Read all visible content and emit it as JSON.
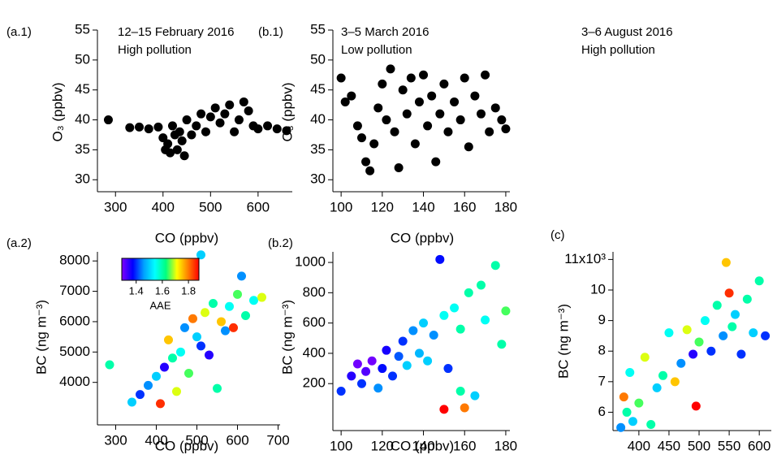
{
  "chart_data": [
    {
      "type": "scatter",
      "panel_label": "(a.1)",
      "annotations": [
        "12–15 February 2016",
        "High pollution"
      ],
      "xlabel": "CO (ppbv)",
      "ylabel": "O₃ (ppbv)",
      "xlim": [
        262,
        672
      ],
      "ylim": [
        28,
        55
      ],
      "xticks": [
        300,
        400,
        500,
        600
      ],
      "yticks": [
        30,
        35,
        40,
        45,
        50,
        55
      ],
      "color": "#000000",
      "x": [
        285,
        330,
        350,
        370,
        390,
        400,
        405,
        410,
        415,
        420,
        425,
        430,
        435,
        440,
        445,
        450,
        460,
        470,
        480,
        490,
        500,
        510,
        520,
        530,
        540,
        550,
        560,
        570,
        580,
        590,
        600,
        620,
        640,
        660
      ],
      "values": [
        40,
        38.7,
        38.8,
        38.5,
        38.8,
        37,
        35,
        36,
        34.5,
        39,
        37.5,
        35,
        38,
        36.5,
        34,
        40,
        37.5,
        39,
        41,
        38,
        40.5,
        42,
        39.5,
        41,
        42.5,
        38,
        40,
        43,
        41.5,
        39,
        38.5,
        39,
        38.5,
        38.2
      ]
    },
    {
      "type": "scatter",
      "panel_label": "(b.1)",
      "annotations": [
        "3–5 March 2016",
        "Low pollution"
      ],
      "xlabel": "CO (ppbv)",
      "ylabel": "O₃ (ppbv)",
      "xlim": [
        96,
        182
      ],
      "ylim": [
        28,
        55
      ],
      "xticks": [
        100,
        120,
        140,
        160,
        180
      ],
      "yticks": [
        30,
        35,
        40,
        45,
        50,
        55
      ],
      "color": "#000000",
      "x": [
        100,
        102,
        105,
        108,
        110,
        112,
        114,
        116,
        118,
        120,
        122,
        124,
        126,
        128,
        130,
        132,
        134,
        136,
        138,
        140,
        142,
        144,
        146,
        148,
        150,
        152,
        155,
        158,
        160,
        162,
        165,
        168,
        170,
        172,
        175,
        178,
        180
      ],
      "values": [
        47,
        43,
        44,
        39,
        37,
        33,
        31.5,
        36,
        42,
        46,
        40,
        48.5,
        38,
        32,
        45,
        41,
        47,
        36,
        43,
        47.5,
        39,
        44,
        33,
        41,
        46,
        38,
        43,
        40,
        47,
        35.5,
        44,
        41,
        47.5,
        38,
        42,
        40,
        38.5
      ]
    },
    {
      "type": "scatter",
      "panel_label": "(a.2)",
      "xlabel": "CO (ppbv)",
      "ylabel": "BC (ng m⁻³)",
      "xlim": [
        255,
        705
      ],
      "ylim": [
        2600,
        8300
      ],
      "xticks": [
        300,
        400,
        500,
        600,
        700
      ],
      "yticks": [
        4000,
        5000,
        6000,
        7000,
        8000
      ],
      "colormap": [
        "#8000ff",
        "#0000ff",
        "#00a0ff",
        "#00ffff",
        "#00ff80",
        "#ffff00",
        "#ff8000",
        "#ff0000"
      ],
      "colorbar": {
        "label": "AAE",
        "lim": [
          1.29,
          1.88
        ],
        "ticks": [
          1.4,
          1.6,
          1.8
        ]
      },
      "x": [
        285,
        340,
        360,
        380,
        400,
        410,
        420,
        430,
        440,
        450,
        460,
        470,
        480,
        490,
        500,
        510,
        520,
        510,
        530,
        540,
        550,
        560,
        570,
        580,
        590,
        600,
        610,
        620,
        640,
        660
      ],
      "values": [
        4580,
        3350,
        3600,
        3900,
        4200,
        3300,
        4500,
        5400,
        4800,
        3700,
        5000,
        5800,
        4300,
        6100,
        5500,
        5200,
        6300,
        8200,
        4900,
        6600,
        3800,
        6000,
        5700,
        6500,
        5800,
        6900,
        7500,
        6200,
        6700,
        6800
      ],
      "color_values": [
        1.6,
        1.5,
        1.4,
        1.45,
        1.5,
        1.85,
        1.35,
        1.75,
        1.6,
        1.7,
        1.55,
        1.45,
        1.65,
        1.8,
        1.5,
        1.4,
        1.7,
        1.5,
        1.35,
        1.6,
        1.6,
        1.75,
        1.45,
        1.55,
        1.85,
        1.65,
        1.45,
        1.6,
        1.55,
        1.7
      ]
    },
    {
      "type": "scatter",
      "panel_label": "(b.2)",
      "xlabel": "CO (ppbv)",
      "ylabel": "BC (ng m⁻³)",
      "xlim": [
        96,
        182
      ],
      "ylim": [
        -110,
        1070
      ],
      "xticks": [
        100,
        120,
        140,
        160,
        180
      ],
      "yticks": [
        200,
        400,
        600,
        800,
        1000
      ],
      "x": [
        100,
        105,
        108,
        110,
        112,
        115,
        118,
        120,
        122,
        125,
        128,
        130,
        132,
        135,
        138,
        140,
        142,
        145,
        148,
        150,
        152,
        155,
        158,
        160,
        162,
        165,
        168,
        170,
        175,
        178,
        180,
        150,
        158
      ],
      "values": [
        150,
        250,
        330,
        200,
        280,
        350,
        170,
        300,
        420,
        250,
        380,
        480,
        320,
        550,
        400,
        600,
        350,
        520,
        1020,
        650,
        300,
        700,
        560,
        40,
        800,
        120,
        850,
        620,
        980,
        460,
        680,
        30,
        150
      ],
      "color_values": [
        1.4,
        1.35,
        1.3,
        1.4,
        1.32,
        1.3,
        1.45,
        1.38,
        1.36,
        1.4,
        1.42,
        1.4,
        1.5,
        1.45,
        1.48,
        1.5,
        1.5,
        1.45,
        1.38,
        1.55,
        1.4,
        1.55,
        1.6,
        1.8,
        1.6,
        1.5,
        1.6,
        1.55,
        1.6,
        1.6,
        1.65,
        1.9,
        1.6
      ]
    },
    {
      "type": "scatter",
      "panel_label": "(c)",
      "annotations": [
        "3–6 August 2016",
        "High pollution"
      ],
      "ylabel": "BC (ng m⁻³)",
      "xlim": [
        357,
        620
      ],
      "ylim": [
        5400,
        11250
      ],
      "xticks": [
        400,
        450,
        500,
        550,
        600
      ],
      "yticks": [
        {
          "value": 6000,
          "label": "6"
        },
        {
          "value": 7000,
          "label": "7"
        },
        {
          "value": 8000,
          "label": "8"
        },
        {
          "value": 9000,
          "label": "9"
        },
        {
          "value": 10000,
          "label": "10"
        },
        {
          "value": 11000,
          "label": "11x10³"
        }
      ],
      "x": [
        370,
        375,
        380,
        385,
        390,
        400,
        410,
        420,
        430,
        440,
        450,
        460,
        470,
        480,
        490,
        495,
        500,
        510,
        520,
        530,
        540,
        545,
        550,
        555,
        560,
        570,
        580,
        590,
        600,
        610
      ],
      "values": [
        5500,
        6500,
        6000,
        7300,
        5700,
        6300,
        7800,
        5600,
        6800,
        7200,
        8600,
        7000,
        7600,
        8700,
        7900,
        6200,
        8300,
        9000,
        8000,
        9500,
        8500,
        10900,
        9900,
        8800,
        9200,
        7900,
        9700,
        8600,
        10300,
        8500
      ],
      "color_values": [
        1.45,
        1.8,
        1.6,
        1.55,
        1.5,
        1.65,
        1.7,
        1.6,
        1.5,
        1.6,
        1.55,
        1.75,
        1.45,
        1.7,
        1.35,
        1.9,
        1.65,
        1.55,
        1.4,
        1.6,
        1.45,
        1.75,
        1.85,
        1.6,
        1.5,
        1.4,
        1.6,
        1.5,
        1.6,
        1.4
      ]
    }
  ]
}
